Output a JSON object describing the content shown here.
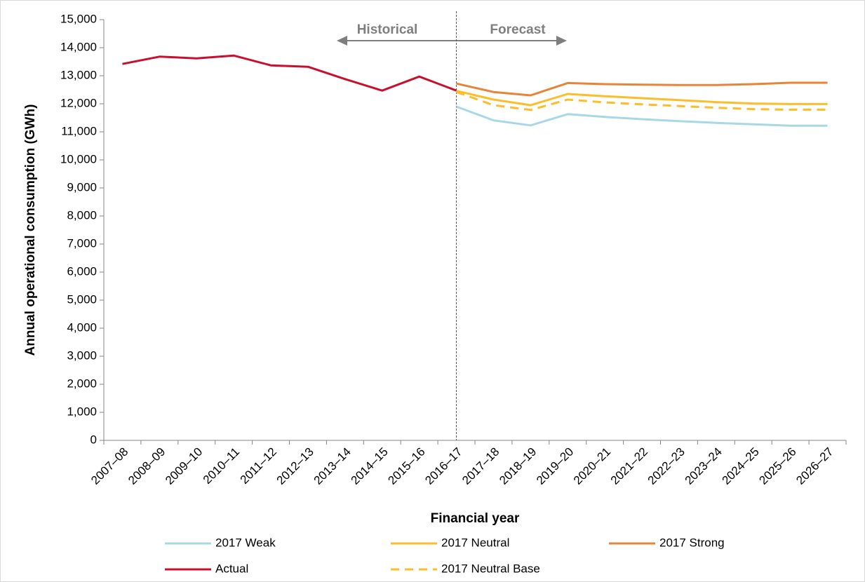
{
  "chart_data": {
    "type": "line",
    "x_label": "Financial year",
    "y_label": "Annual operational consumption (GWh)",
    "annotations": [
      "Historical",
      "Forecast"
    ],
    "categories": [
      "2007–08",
      "2008–09",
      "2009–10",
      "2010–11",
      "2011–12",
      "2012–13",
      "2013–14",
      "2014–15",
      "2015–16",
      "2016–17",
      "2017–18",
      "2018–19",
      "2019–20",
      "2020–21",
      "2021–22",
      "2022–23",
      "2023–24",
      "2024–25",
      "2025–26",
      "2026–27"
    ],
    "ylim": [
      0,
      15000
    ],
    "yticks": [
      0,
      {
        "value": 1000,
        "label": "1,000"
      },
      {
        "value": 2000,
        "label": "2,000"
      },
      {
        "value": 3000,
        "label": "3,000"
      },
      {
        "value": 4000,
        "label": "4,000"
      },
      {
        "value": 5000,
        "label": "5,000"
      },
      {
        "value": 6000,
        "label": "6,000"
      },
      {
        "value": 7000,
        "label": "7,000"
      },
      {
        "value": 8000,
        "label": "8,000"
      },
      {
        "value": 9000,
        "label": "9,000"
      },
      {
        "value": 10000,
        "label": "10,000"
      },
      {
        "value": 11000,
        "label": "11,000"
      },
      {
        "value": 12000,
        "label": "12,000"
      },
      {
        "value": 13000,
        "label": "13,000"
      },
      {
        "value": 14000,
        "label": "14,000"
      },
      {
        "value": 15000,
        "label": "15,000"
      }
    ],
    "grid": false,
    "legend": "bottom",
    "series": [
      {
        "name": "2017 Weak",
        "color": "#a8d8e6",
        "style": "solid",
        "values": [
          null,
          null,
          null,
          null,
          null,
          null,
          null,
          null,
          null,
          11900,
          11410,
          11230,
          11630,
          11530,
          11450,
          11380,
          11320,
          11270,
          11220,
          11220
        ]
      },
      {
        "name": "2017 Neutral",
        "color": "#fbbd2a",
        "style": "solid",
        "values": [
          null,
          null,
          null,
          null,
          null,
          null,
          null,
          null,
          null,
          12460,
          12150,
          11950,
          12350,
          12270,
          12200,
          12130,
          12060,
          12010,
          11990,
          11990
        ]
      },
      {
        "name": "2017 Strong",
        "color": "#e8833a",
        "style": "solid",
        "values": [
          null,
          null,
          null,
          null,
          null,
          null,
          null,
          null,
          null,
          12720,
          12420,
          12300,
          12740,
          12700,
          12680,
          12670,
          12670,
          12700,
          12750,
          12750
        ]
      },
      {
        "name": "Actual",
        "color": "#c8102e",
        "style": "solid",
        "values": [
          13420,
          13680,
          13620,
          13720,
          13370,
          13320,
          12880,
          12470,
          12970,
          12470,
          null,
          null,
          null,
          null,
          null,
          null,
          null,
          null,
          null,
          null
        ]
      },
      {
        "name": "2017 Neutral Base",
        "color": "#fbbd2a",
        "style": "dashed",
        "values": [
          null,
          null,
          null,
          null,
          null,
          null,
          null,
          null,
          null,
          12420,
          11950,
          11780,
          12150,
          12050,
          11980,
          11920,
          11860,
          11810,
          11790,
          11790
        ]
      }
    ]
  }
}
